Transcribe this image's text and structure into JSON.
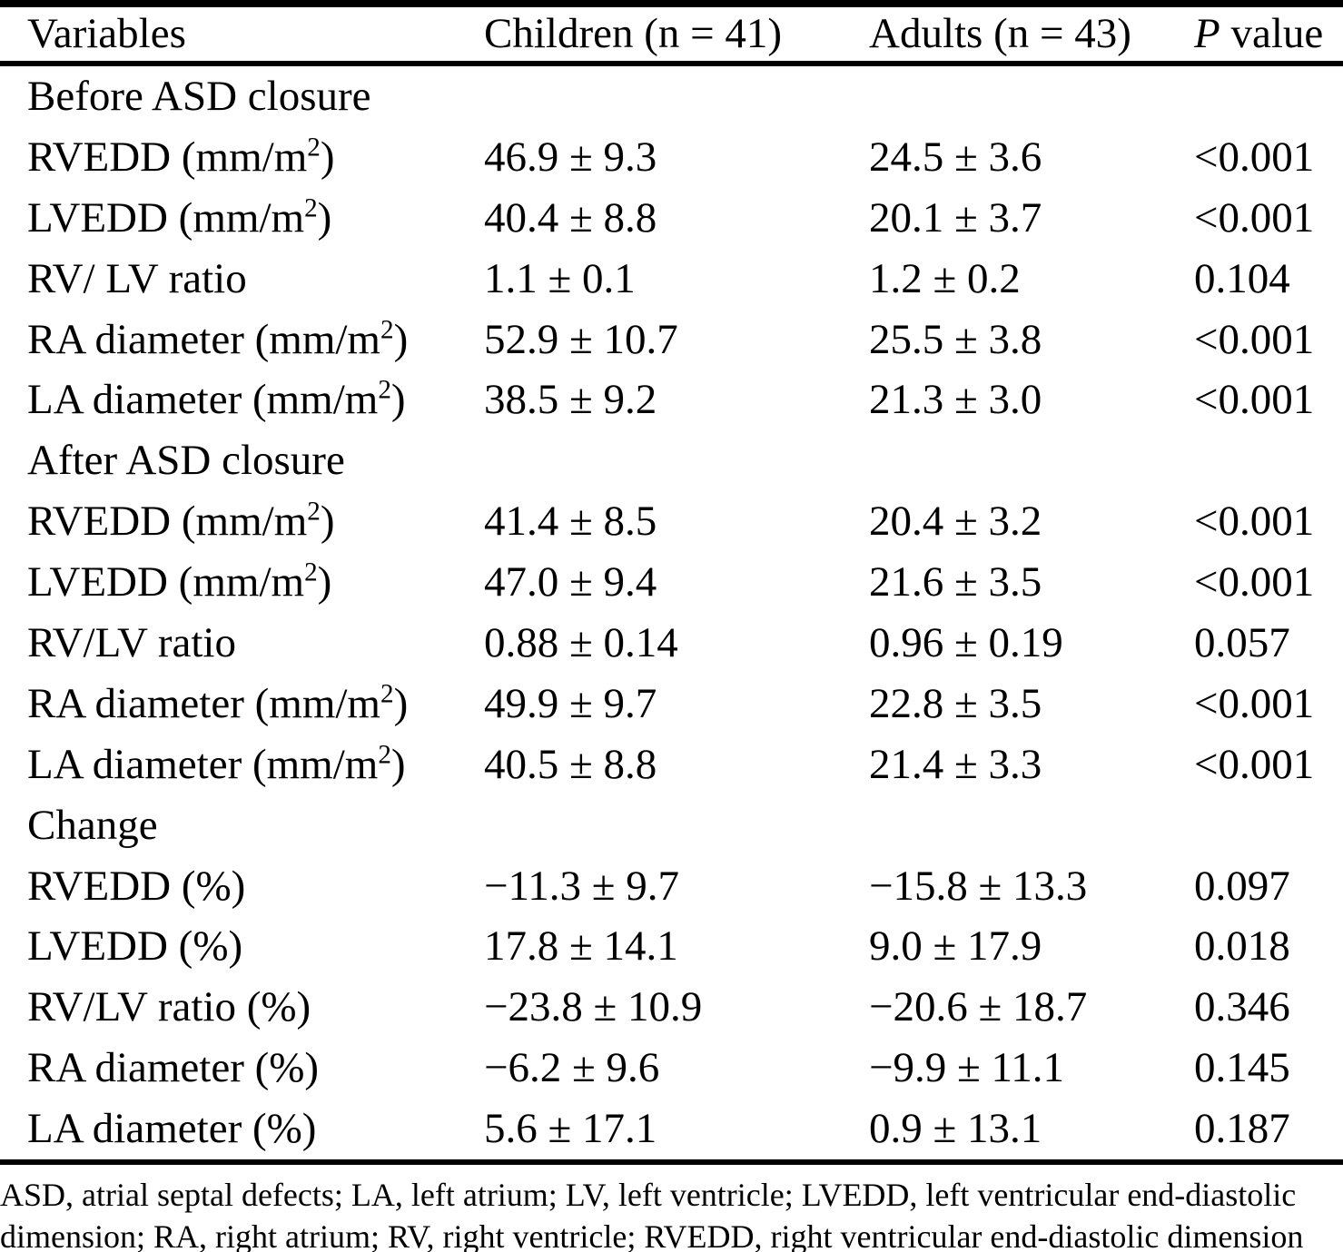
{
  "colors": {
    "text": "#000000",
    "background": "#ffffff",
    "rule": "#000000"
  },
  "header": {
    "variables": "Variables",
    "children": "Children (n = 41)",
    "adults": "Adults (n = 43)",
    "p_symbol": "P",
    "p_rest": " value"
  },
  "rows": [
    {
      "type": "section",
      "label": "Before ASD closure"
    },
    {
      "type": "data",
      "variable": {
        "pre": "RVEDD (mm/m",
        "sup": "2",
        "post": ")"
      },
      "children": "46.9 ± 9.3",
      "adults": "24.5 ± 3.6",
      "p": "<0.001"
    },
    {
      "type": "data",
      "variable": {
        "pre": "LVEDD (mm/m",
        "sup": "2",
        "post": ")"
      },
      "children": "40.4 ± 8.8",
      "adults": "20.1 ± 3.7",
      "p": "<0.001"
    },
    {
      "type": "data",
      "variable": {
        "pre": "RV/ LV ratio",
        "sup": "",
        "post": ""
      },
      "children": "1.1 ± 0.1",
      "adults": "1.2 ± 0.2",
      "p": "0.104"
    },
    {
      "type": "data",
      "variable": {
        "pre": "RA diameter (mm/m",
        "sup": "2",
        "post": ")"
      },
      "children": "52.9 ± 10.7",
      "adults": "25.5 ± 3.8",
      "p": "<0.001"
    },
    {
      "type": "data",
      "variable": {
        "pre": "LA diameter (mm/m",
        "sup": "2",
        "post": ")"
      },
      "children": "38.5 ± 9.2",
      "adults": "21.3 ± 3.0",
      "p": "<0.001"
    },
    {
      "type": "section",
      "label": "After ASD closure"
    },
    {
      "type": "data",
      "variable": {
        "pre": "RVEDD (mm/m",
        "sup": "2",
        "post": ")"
      },
      "children": "41.4 ± 8.5",
      "adults": "20.4 ± 3.2",
      "p": "<0.001"
    },
    {
      "type": "data",
      "variable": {
        "pre": "LVEDD (mm/m",
        "sup": "2",
        "post": ")"
      },
      "children": "47.0 ± 9.4",
      "adults": "21.6 ± 3.5",
      "p": "<0.001"
    },
    {
      "type": "data",
      "variable": {
        "pre": "RV/LV ratio",
        "sup": "",
        "post": ""
      },
      "children": "0.88 ± 0.14",
      "adults": "0.96 ± 0.19",
      "p": "0.057"
    },
    {
      "type": "data",
      "variable": {
        "pre": "RA diameter (mm/m",
        "sup": "2",
        "post": ")"
      },
      "children": "49.9 ± 9.7",
      "adults": "22.8 ± 3.5",
      "p": "<0.001"
    },
    {
      "type": "data",
      "variable": {
        "pre": "LA diameter (mm/m",
        "sup": "2",
        "post": ")"
      },
      "children": "40.5 ± 8.8",
      "adults": "21.4 ± 3.3",
      "p": "<0.001"
    },
    {
      "type": "section",
      "label": "Change"
    },
    {
      "type": "data",
      "variable": {
        "pre": "RVEDD (%)",
        "sup": "",
        "post": ""
      },
      "children": "−11.3 ± 9.7",
      "adults": "−15.8 ± 13.3",
      "p": "0.097"
    },
    {
      "type": "data",
      "variable": {
        "pre": "LVEDD (%)",
        "sup": "",
        "post": ""
      },
      "children": "17.8 ± 14.1",
      "adults": "9.0 ± 17.9",
      "p": "0.018"
    },
    {
      "type": "data",
      "variable": {
        "pre": "RV/LV ratio (%)",
        "sup": "",
        "post": ""
      },
      "children": "−23.8 ± 10.9",
      "adults": "−20.6 ± 18.7",
      "p": "0.346"
    },
    {
      "type": "data",
      "variable": {
        "pre": "RA diameter (%)",
        "sup": "",
        "post": ""
      },
      "children": "−6.2 ± 9.6",
      "adults": "−9.9 ± 11.1",
      "p": "0.145"
    },
    {
      "type": "data",
      "variable": {
        "pre": "LA diameter (%)",
        "sup": "",
        "post": ""
      },
      "children": "5.6 ± 17.1",
      "adults": "0.9 ± 13.1",
      "p": "0.187"
    }
  ],
  "footnote": {
    "line1": "ASD, atrial septal defects; LA, left atrium; LV, left ventricle; LVEDD, left ventricular end-diastolic",
    "line2": "dimension; RA, right atrium; RV, right ventricle; RVEDD, right ventricular end-diastolic dimension"
  }
}
